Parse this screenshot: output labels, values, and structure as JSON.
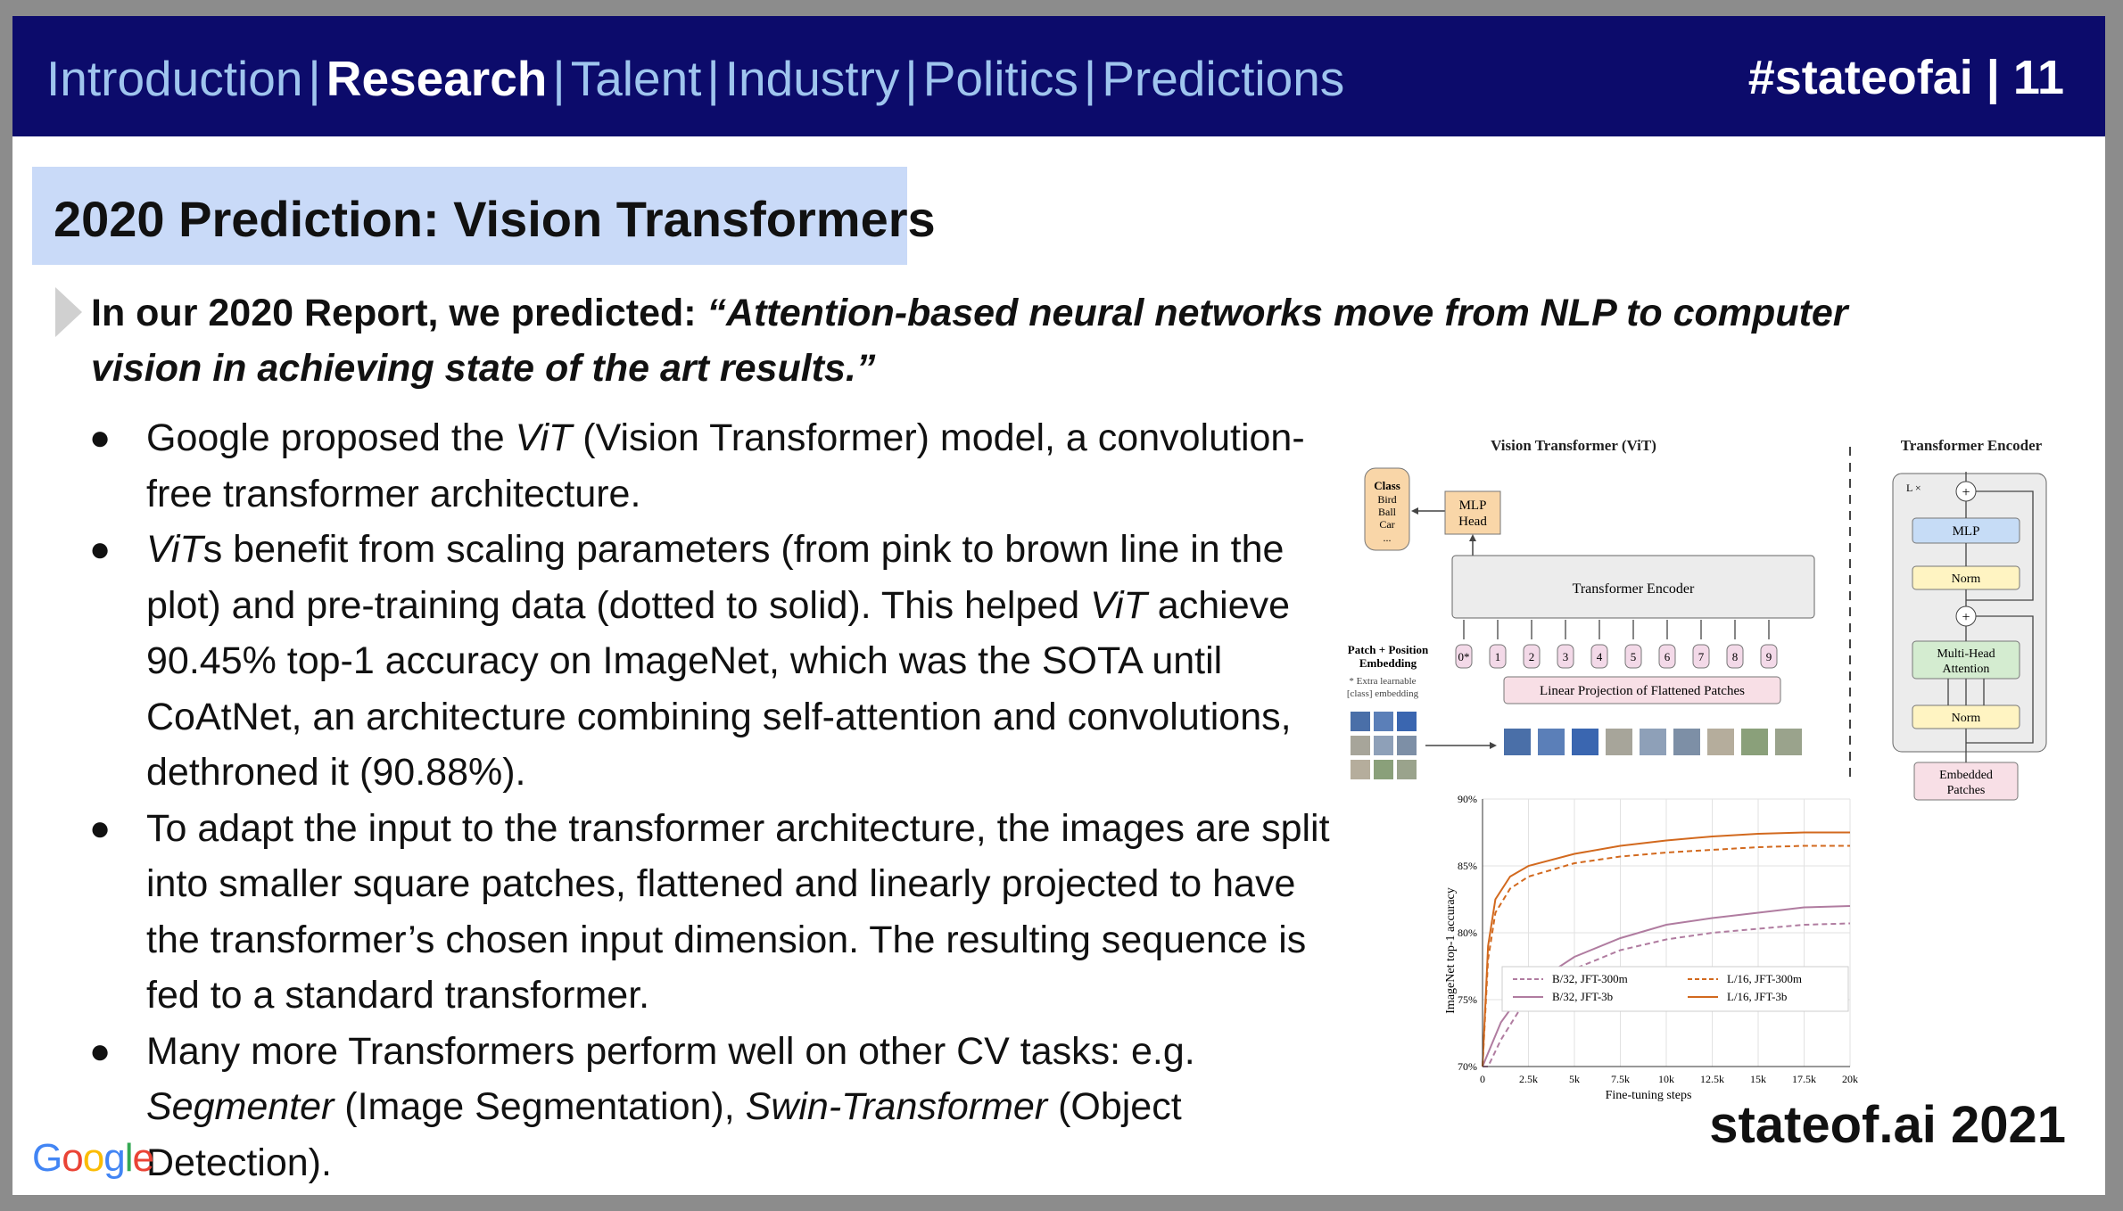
{
  "header": {
    "nav": [
      {
        "label": "Introduction",
        "active": false
      },
      {
        "label": "Research",
        "active": true
      },
      {
        "label": "Talent",
        "active": false
      },
      {
        "label": "Industry",
        "active": false
      },
      {
        "label": "Politics",
        "active": false
      },
      {
        "label": "Predictions",
        "active": false
      }
    ],
    "separator": "|",
    "tag": "#stateofai | 11"
  },
  "title": "2020 Prediction: Vision Transformers",
  "lead": {
    "prefix": "In our 2020 Report, we predicted: ",
    "quote": "“Attention-based neural networks move from NLP to computer vision in achieving state of the art results.”"
  },
  "bullets": {
    "b1": {
      "t1": "Google proposed the ",
      "i1": "ViT",
      "t2": " (Vision Transformer) model, a convolution-free transformer architecture."
    },
    "b2": {
      "i1": "ViT",
      "t1": "s benefit from scaling parameters (from pink to brown line in the plot) and pre-training data (dotted to solid). This helped ",
      "i2": "ViT",
      "t2": " achieve 90.45% top-1 accuracy on ImageNet, which was the SOTA until CoAtNet, an architecture combining self-attention and convolutions, dethroned it (90.88%)."
    },
    "b3": {
      "t1": "To adapt the input to the transformer architecture, the images are split into smaller square patches, flattened and linearly projected to have the transformer’s chosen input dimension. The resulting sequence is fed to a standard transformer."
    },
    "b4": {
      "t1": "Many more Transformers perform well on other CV tasks: e.g. ",
      "i1": "Segmenter",
      "t2": " (Image Segmentation), ",
      "i2": "Swin-Transformer",
      "t3": " (Object Detection)."
    }
  },
  "bullet_glyph": "●",
  "footer": "stateof.ai 2021",
  "logo": "Google",
  "diagram": {
    "title": "Vision Transformer (ViT)",
    "encoder_title": "Transformer Encoder",
    "class_box": [
      "Class",
      "Bird",
      "Ball",
      "Car",
      "..."
    ],
    "mlp_head": [
      "MLP",
      "Head"
    ],
    "encoder_label": "Transformer Encoder",
    "patch_label": [
      "Patch + Position",
      "Embedding"
    ],
    "extra_note": [
      "* Extra learnable",
      "[class] embedding"
    ],
    "linear_proj": "Linear Projection of Flattened Patches",
    "tokens": [
      "0*",
      "1",
      "2",
      "3",
      "4",
      "5",
      "6",
      "7",
      "8",
      "9"
    ],
    "enc_lx": "L ×",
    "enc_blocks": {
      "mlp": "MLP",
      "norm1": "Norm",
      "mha": [
        "Multi-Head",
        "Attention"
      ],
      "norm2": "Norm",
      "embedded": [
        "Embedded",
        "Patches"
      ]
    },
    "plus": "+"
  },
  "chart_data": {
    "type": "line",
    "xlabel": "Fine-tuning steps",
    "ylabel": "ImageNet top-1 accuracy",
    "xlim": [
      0,
      20000
    ],
    "ylim": [
      70,
      90
    ],
    "xticks": [
      0,
      2500,
      5000,
      7500,
      10000,
      12500,
      15000,
      17500,
      20000
    ],
    "xtick_labels": [
      "0",
      "2.5k",
      "5k",
      "7.5k",
      "10k",
      "12.5k",
      "15k",
      "17.5k",
      "20k"
    ],
    "yticks": [
      70,
      75,
      80,
      85,
      90
    ],
    "ytick_labels": [
      "70%",
      "75%",
      "80%",
      "85%",
      "90%"
    ],
    "legend_position": "bottom-right",
    "series": [
      {
        "name": "B/32, JFT-300m",
        "color": "#b07ca0",
        "dashed": true,
        "x": [
          0,
          300,
          1000,
          2000,
          3000,
          5000,
          7500,
          10000,
          12500,
          15000,
          17500,
          20000
        ],
        "y": [
          70,
          70,
          72,
          74.2,
          75.6,
          77.3,
          78.7,
          79.5,
          80.0,
          80.3,
          80.6,
          80.7
        ]
      },
      {
        "name": "B/32, JFT-3b",
        "color": "#b07ca0",
        "dashed": false,
        "x": [
          0,
          300,
          1000,
          2000,
          3000,
          5000,
          7500,
          10000,
          12500,
          15000,
          17500,
          20000
        ],
        "y": [
          70,
          71,
          73.3,
          75.2,
          76.4,
          78.2,
          79.6,
          80.6,
          81.1,
          81.5,
          81.9,
          82.0
        ]
      },
      {
        "name": "L/16, JFT-300m",
        "color": "#d2691e",
        "dashed": true,
        "x": [
          0,
          300,
          700,
          1500,
          2500,
          5000,
          7500,
          10000,
          12500,
          15000,
          17500,
          20000
        ],
        "y": [
          70,
          78,
          81.5,
          83.3,
          84.2,
          85.2,
          85.7,
          86.0,
          86.2,
          86.4,
          86.5,
          86.5
        ]
      },
      {
        "name": "L/16, JFT-3b",
        "color": "#d2691e",
        "dashed": false,
        "x": [
          0,
          300,
          700,
          1500,
          2500,
          5000,
          7500,
          10000,
          12500,
          15000,
          17500,
          20000
        ],
        "y": [
          70,
          79,
          82.5,
          84.2,
          85.0,
          85.9,
          86.5,
          86.9,
          87.2,
          87.4,
          87.5,
          87.5
        ]
      }
    ]
  }
}
